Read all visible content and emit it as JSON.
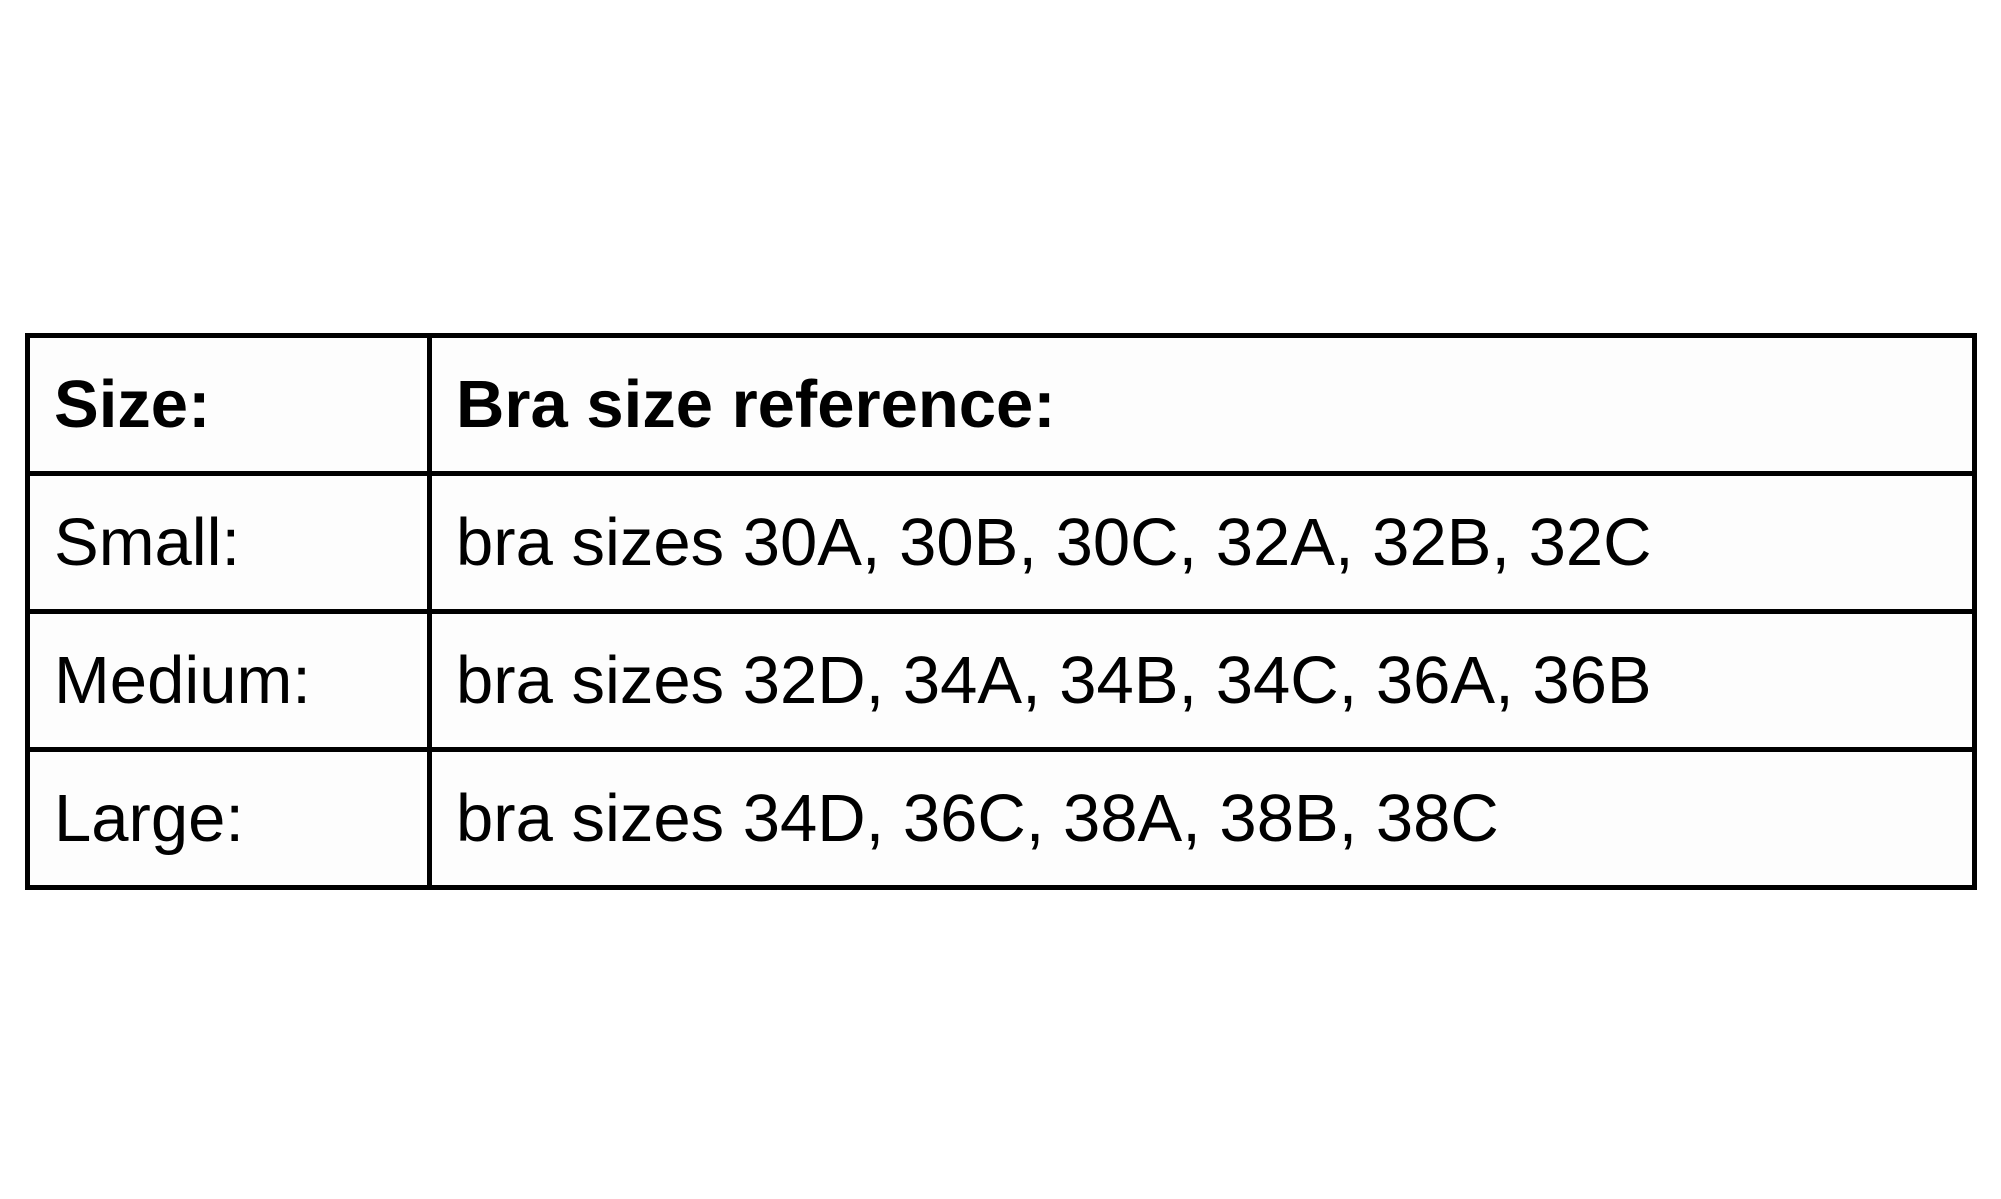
{
  "page": {
    "background": "#ffffff"
  },
  "table": {
    "title": "bra-size-reference-table",
    "border_color": "#000000",
    "text_color": "#000000",
    "header": {
      "size": "Size:",
      "reference": "Bra size reference:"
    },
    "rows": [
      {
        "size": "Small:",
        "reference": "bra sizes 30A, 30B, 30C, 32A, 32B, 32C"
      },
      {
        "size": "Medium:",
        "reference": "bra sizes 32D, 34A, 34B, 34C, 36A, 36B"
      },
      {
        "size": "Large:",
        "reference": "bra sizes 34D, 36C, 38A, 38B, 38C"
      }
    ]
  },
  "chart_data": {
    "type": "table",
    "columns": [
      "Size:",
      "Bra size reference:"
    ],
    "rows": [
      [
        "Small:",
        "bra sizes 30A, 30B, 30C, 32A, 32B, 32C"
      ],
      [
        "Medium:",
        "bra sizes 32D, 34A, 34B, 34C, 36A, 36B"
      ],
      [
        "Large:",
        "bra sizes 34D, 36C, 38A, 38B, 38C"
      ]
    ]
  }
}
